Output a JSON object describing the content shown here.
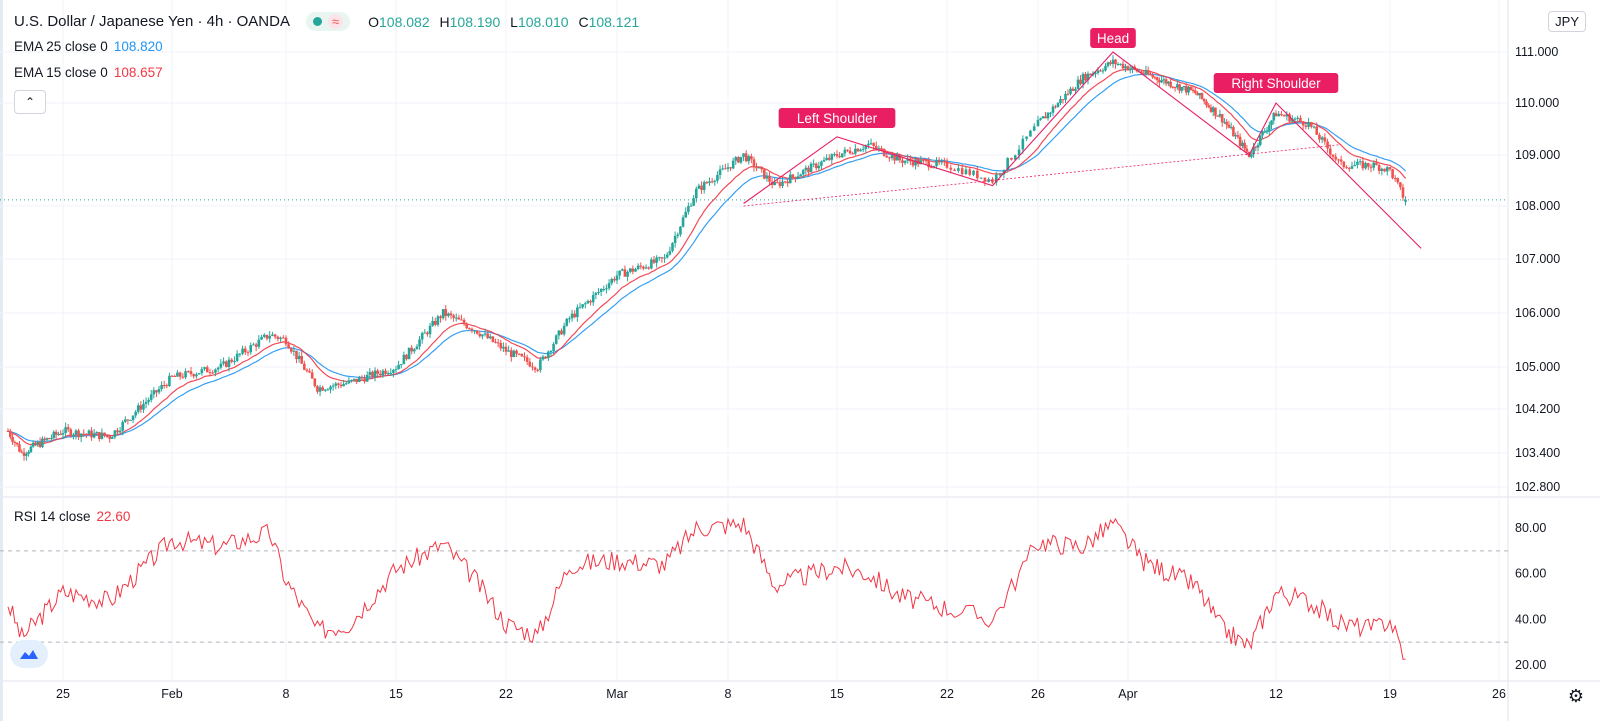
{
  "header": {
    "symbol_title": "U.S. Dollar / Japanese Yen · 4h · OANDA",
    "ohlc": [
      {
        "k": "O",
        "v": "108.082"
      },
      {
        "k": "H",
        "v": "108.190"
      },
      {
        "k": "L",
        "v": "108.010"
      },
      {
        "k": "C",
        "v": "108.121"
      }
    ],
    "wave_glyph": "≈",
    "currency": "JPY",
    "collapse_glyph": "⌃"
  },
  "indicators": {
    "ema25": {
      "label": "EMA 25 close 0",
      "value": "108.820",
      "color": "#2196f3"
    },
    "ema15": {
      "label": "EMA 15 close 0",
      "value": "108.657",
      "color": "#f23645"
    },
    "rsi": {
      "label": "RSI 14 close",
      "value": "22.60",
      "color": "#f23645"
    }
  },
  "annotations": {
    "left_shoulder": "Left Shoulder",
    "head": "Head",
    "right_shoulder": "Right Shoulder",
    "label_color": "#e91e63"
  },
  "icons": {
    "logo": "tradingview-logo-icon",
    "settings": "gear-icon"
  },
  "settings_glyph": "⚙",
  "chart_data": [
    {
      "type": "candlestick",
      "title": "U.S. Dollar / Japanese Yen · 4h · OANDA",
      "y_ticks": [
        "111.000",
        "110.000",
        "109.000",
        "108.000",
        "107.000",
        "106.000",
        "105.000",
        "104.200",
        "103.400",
        "102.800"
      ],
      "y_tick_values": [
        111.0,
        110.0,
        109.0,
        108.0,
        107.0,
        106.0,
        105.0,
        104.2,
        103.4,
        102.8
      ],
      "x_ticks": [
        "25",
        "Feb",
        "8",
        "15",
        "22",
        "Mar",
        "8",
        "15",
        "22",
        "26",
        "Apr",
        "12",
        "19",
        "26"
      ],
      "price_key_points": [
        {
          "t": "Jan 21",
          "p": 103.8
        },
        {
          "t": "Jan 22",
          "p": 103.4
        },
        {
          "t": "Jan 25",
          "p": 103.8
        },
        {
          "t": "Jan 28",
          "p": 103.7
        },
        {
          "t": "Feb 1",
          "p": 104.8
        },
        {
          "t": "Feb 4",
          "p": 105.0
        },
        {
          "t": "Feb 7",
          "p": 105.6
        },
        {
          "t": "Feb 8",
          "p": 105.5
        },
        {
          "t": "Feb 10",
          "p": 104.6
        },
        {
          "t": "Feb 12",
          "p": 104.7
        },
        {
          "t": "Feb 15",
          "p": 105.0
        },
        {
          "t": "Feb 18",
          "p": 106.0
        },
        {
          "t": "Feb 20",
          "p": 105.7
        },
        {
          "t": "Feb 22",
          "p": 105.3
        },
        {
          "t": "Feb 24",
          "p": 105.0
        },
        {
          "t": "Feb 26",
          "p": 105.9
        },
        {
          "t": "Mar 1",
          "p": 106.7
        },
        {
          "t": "Mar 4",
          "p": 107.0
        },
        {
          "t": "Mar 6",
          "p": 108.3
        },
        {
          "t": "Mar 9",
          "p": 109.0
        },
        {
          "t": "Mar 11",
          "p": 108.4
        },
        {
          "t": "Mar 15",
          "p": 109.0
        },
        {
          "t": "Mar 17",
          "p": 109.2
        },
        {
          "t": "Mar 19",
          "p": 108.9
        },
        {
          "t": "Mar 22",
          "p": 108.8
        },
        {
          "t": "Mar 24",
          "p": 108.5
        },
        {
          "t": "Mar 26",
          "p": 109.6
        },
        {
          "t": "Mar 29",
          "p": 110.5
        },
        {
          "t": "Mar 31",
          "p": 110.8
        },
        {
          "t": "Apr 2",
          "p": 110.6
        },
        {
          "t": "Apr 6",
          "p": 110.2
        },
        {
          "t": "Apr 8",
          "p": 109.7
        },
        {
          "t": "Apr 10",
          "p": 109.0
        },
        {
          "t": "Apr 12",
          "p": 109.8
        },
        {
          "t": "Apr 14",
          "p": 109.6
        },
        {
          "t": "Apr 16",
          "p": 108.8
        },
        {
          "t": "Apr 18",
          "p": 108.8
        },
        {
          "t": "Apr 19",
          "p": 108.7
        },
        {
          "t": "Apr 20",
          "p": 108.1
        }
      ],
      "last_price": 108.121
    },
    {
      "type": "line",
      "title": "RSI 14 close",
      "y_ticks": [
        "80.00",
        "60.00",
        "40.00",
        "20.00"
      ],
      "y_tick_values": [
        80,
        60,
        40,
        20
      ],
      "bands": [
        70,
        30
      ],
      "x_ticks": [
        "25",
        "Feb",
        "8",
        "15",
        "22",
        "Mar",
        "8",
        "15",
        "22",
        "26",
        "Apr",
        "12",
        "19",
        "26"
      ],
      "rsi_key_points": [
        {
          "t": "Jan 21",
          "v": 47
        },
        {
          "t": "Jan 22",
          "v": 32
        },
        {
          "t": "Jan 25",
          "v": 52
        },
        {
          "t": "Jan 28",
          "v": 48
        },
        {
          "t": "Feb 1",
          "v": 75
        },
        {
          "t": "Feb 4",
          "v": 72
        },
        {
          "t": "Feb 7",
          "v": 78
        },
        {
          "t": "Feb 8",
          "v": 57
        },
        {
          "t": "Feb 10",
          "v": 35
        },
        {
          "t": "Feb 12",
          "v": 38
        },
        {
          "t": "Feb 15",
          "v": 62
        },
        {
          "t": "Feb 18",
          "v": 73
        },
        {
          "t": "Feb 20",
          "v": 58
        },
        {
          "t": "Feb 22",
          "v": 38
        },
        {
          "t": "Feb 24",
          "v": 33
        },
        {
          "t": "Feb 26",
          "v": 64
        },
        {
          "t": "Mar 1",
          "v": 66
        },
        {
          "t": "Mar 4",
          "v": 64
        },
        {
          "t": "Mar 6",
          "v": 80
        },
        {
          "t": "Mar 9",
          "v": 82
        },
        {
          "t": "Mar 11",
          "v": 55
        },
        {
          "t": "Mar 15",
          "v": 63
        },
        {
          "t": "Mar 17",
          "v": 60
        },
        {
          "t": "Mar 19",
          "v": 50
        },
        {
          "t": "Mar 22",
          "v": 45
        },
        {
          "t": "Mar 24",
          "v": 40
        },
        {
          "t": "Mar 26",
          "v": 74
        },
        {
          "t": "Mar 29",
          "v": 72
        },
        {
          "t": "Mar 31",
          "v": 82
        },
        {
          "t": "Apr 2",
          "v": 66
        },
        {
          "t": "Apr 6",
          "v": 55
        },
        {
          "t": "Apr 8",
          "v": 36
        },
        {
          "t": "Apr 10",
          "v": 28
        },
        {
          "t": "Apr 12",
          "v": 52
        },
        {
          "t": "Apr 14",
          "v": 48
        },
        {
          "t": "Apr 16",
          "v": 38
        },
        {
          "t": "Apr 18",
          "v": 36
        },
        {
          "t": "Apr 19",
          "v": 40
        },
        {
          "t": "Apr 20",
          "v": 22.6
        }
      ]
    }
  ]
}
